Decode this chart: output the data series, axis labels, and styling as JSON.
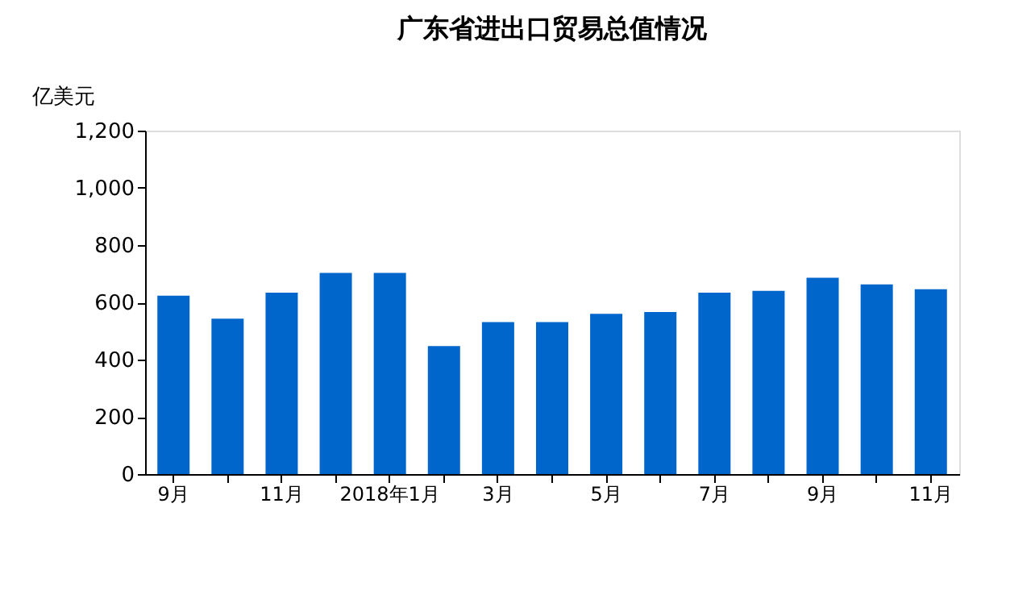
{
  "chart_data": {
    "type": "bar",
    "title": "广东省进出口贸易总值情况",
    "ylabel": "亿美元",
    "categories": [
      "9月",
      null,
      "11月",
      null,
      "2018年1月",
      null,
      "3月",
      null,
      "5月",
      null,
      "7月",
      null,
      "9月",
      null,
      "11月"
    ],
    "values": [
      623,
      543,
      634,
      703,
      703,
      447,
      531,
      531,
      560,
      566,
      634,
      640,
      686,
      663,
      646
    ],
    "color": "#0066cc",
    "ylim": [
      0,
      1200
    ],
    "yticks": [
      0,
      {
        "value": 200,
        "label": "200"
      },
      {
        "value": 400,
        "label": "400"
      },
      {
        "value": 600,
        "label": "600"
      },
      {
        "value": 800,
        "label": "800"
      },
      {
        "value": 1000,
        "label": "1,000"
      },
      {
        "value": 1200,
        "label": "1,200"
      }
    ],
    "grid": false
  }
}
